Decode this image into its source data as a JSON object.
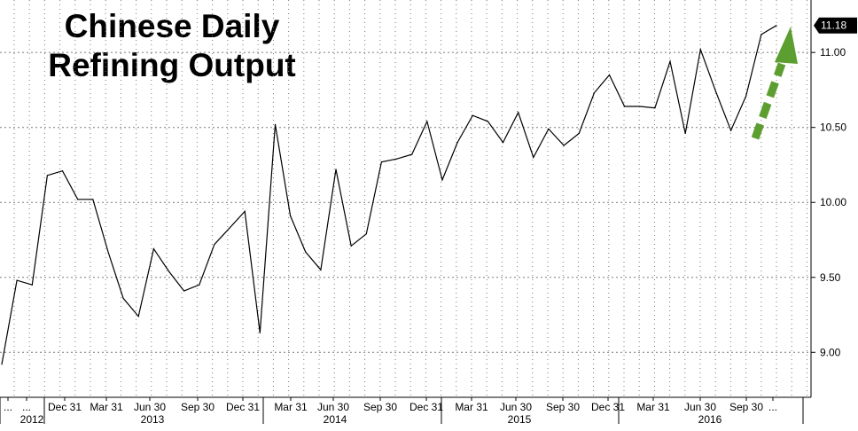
{
  "chart_data": {
    "type": "line",
    "title": "Chinese Daily Refining Output",
    "title_lines": [
      "Chinese Daily",
      "Refining Output"
    ],
    "y_ticks": [
      "9.00",
      "9.50",
      "10.00",
      "10.50",
      "11.00"
    ],
    "ylim": [
      8.7,
      11.35
    ],
    "last_value_label": "11.18",
    "x_period_labels": [
      "...",
      "...",
      "Dec 31",
      "Mar 31",
      "Jun 30",
      "Sep 30",
      "Dec 31",
      "Mar 31",
      "Jun 30",
      "Sep 30",
      "Dec 31",
      "Mar 31",
      "Jun 30",
      "Sep 30",
      "Dec 31",
      "Mar 31",
      "Jun 30",
      "Sep 30",
      "..."
    ],
    "x_year_labels": [
      "2012",
      "2013",
      "2014",
      "2015",
      "2016"
    ],
    "series": [
      {
        "values": [
          8.92,
          9.48,
          9.45,
          10.18,
          10.21,
          10.02,
          10.02,
          9.67,
          9.36,
          9.24,
          9.69,
          9.54,
          9.41,
          9.45,
          9.72,
          9.83,
          9.94,
          9.13,
          10.52,
          9.91,
          9.67,
          9.55,
          10.22,
          9.71,
          9.79,
          10.27,
          10.29,
          10.32,
          10.54,
          10.15,
          10.4,
          10.58,
          10.54,
          10.4,
          10.6,
          10.3,
          10.49,
          10.38,
          10.46,
          10.73,
          10.85,
          10.64,
          10.64,
          10.63,
          10.94,
          10.46,
          11.02,
          10.74,
          10.48,
          10.71,
          11.12,
          11.18
        ]
      }
    ],
    "grid": true,
    "annotation": "green dashed arrow pointing upward"
  },
  "colors": {
    "line": "#000000",
    "grid": "#7a7a7a",
    "arrow": "#5c9e2f",
    "last_badge": "#000000"
  }
}
